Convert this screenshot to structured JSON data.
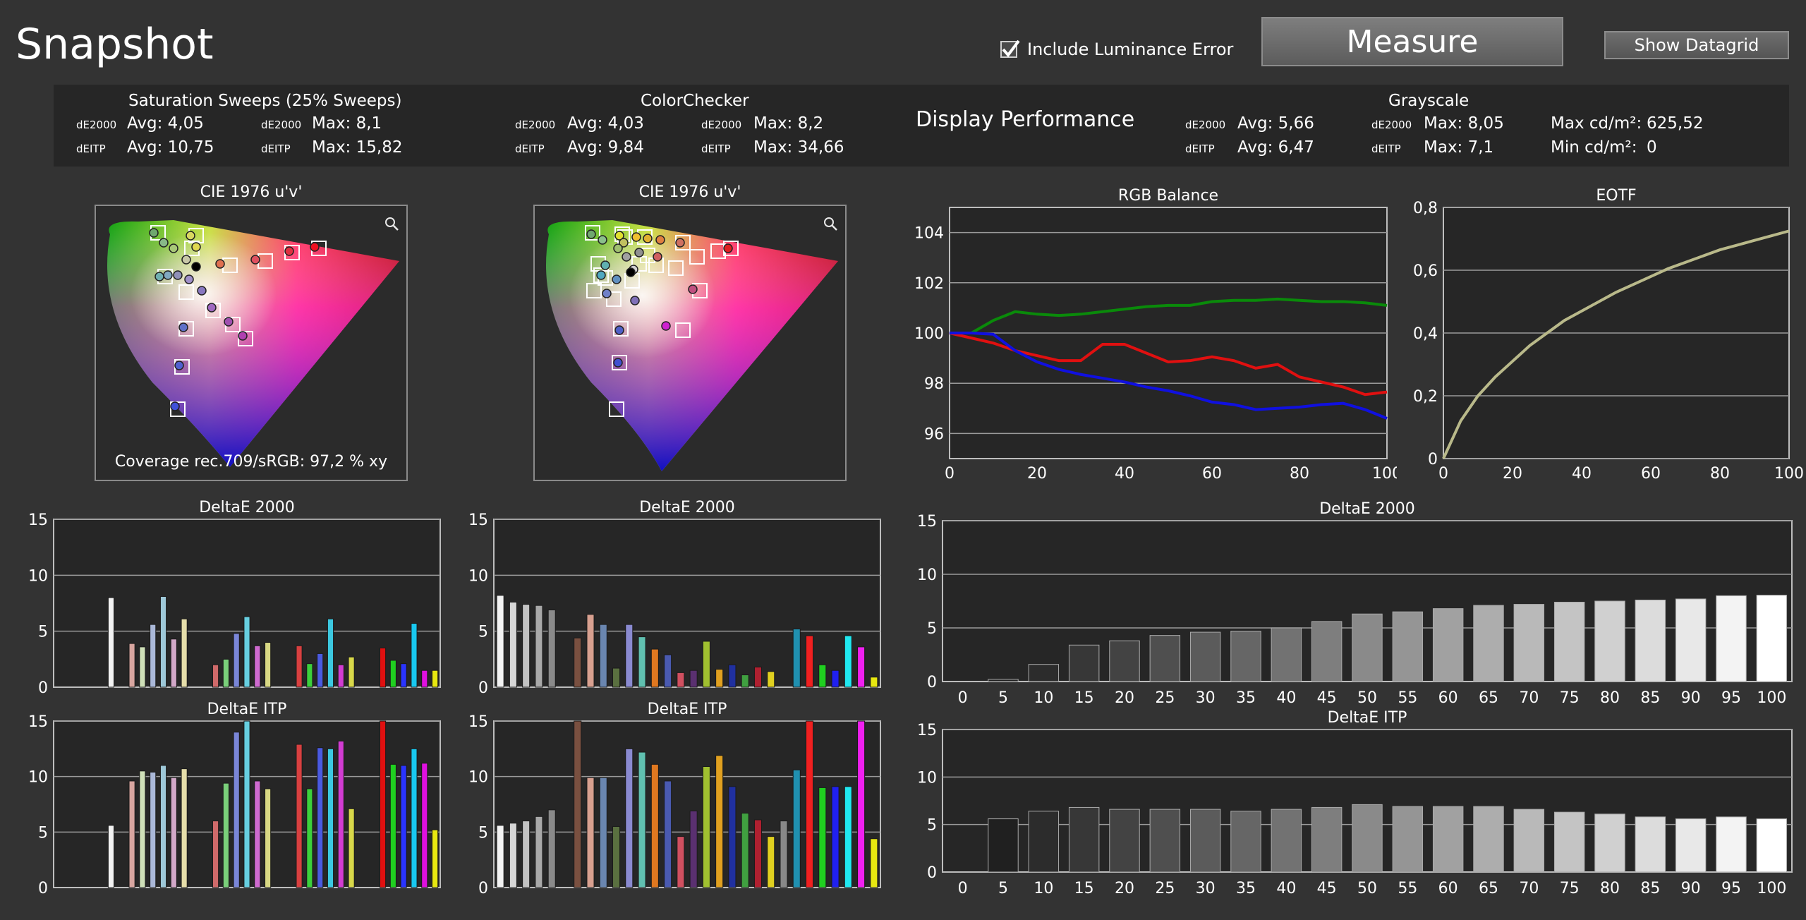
{
  "header": {
    "title": "Snapshot",
    "include_luminance_error": "Include Luminance Error",
    "include_luminance_checked": true,
    "measure_label": "Measure",
    "show_datagrid_label": "Show Datagrid"
  },
  "summary": {
    "saturation": {
      "title": "Saturation Sweeps (25% Sweeps)",
      "de2000_label": "dE2000",
      "deitp_label": "dEITP",
      "de2000_avg": "Avg: 4,05",
      "de2000_max": "Max: 8,1",
      "deitp_avg": "Avg: 10,75",
      "deitp_max": "Max: 15,82"
    },
    "colorchecker": {
      "title": "ColorChecker",
      "de2000_label": "dE2000",
      "deitp_label": "dEITP",
      "de2000_avg": "Avg: 4,03",
      "de2000_max": "Max: 8,2",
      "deitp_avg": "Avg: 9,84",
      "deitp_max": "Max: 34,66"
    },
    "display_performance": "Display Performance",
    "grayscale": {
      "title": "Grayscale",
      "de2000_label": "dE2000",
      "deitp_label": "dEITP",
      "de2000_avg": "Avg: 5,66",
      "de2000_max": "Max: 8,05",
      "deitp_avg": "Avg: 6,47",
      "deitp_max": "Max: 7,1",
      "max_cd_label": "Max cd/m²:",
      "max_cd_value": "625,52",
      "min_cd_label": "Min cd/m²:",
      "min_cd_value": "0"
    }
  },
  "cie": {
    "left_title": "CIE 1976 u'v'",
    "right_title": "CIE 1976 u'v'",
    "coverage_text": "Coverage rec.709/sRGB:  97,2 % xy",
    "magnifier_icon": "magnifier-icon"
  },
  "colors": {
    "background": "#333333",
    "panel": "#262626",
    "grid": "#9a9a9a",
    "axis": "#bdbdbd"
  },
  "chart_data": [
    {
      "id": "rgb_balance",
      "type": "line",
      "title": "RGB Balance",
      "xlabel": "",
      "ylabel": "",
      "xlim": [
        0,
        100
      ],
      "ylim": [
        95,
        105
      ],
      "xticks": [
        0,
        20,
        40,
        60,
        80,
        100
      ],
      "xtick_labels": [
        "0",
        "20",
        "40",
        "60",
        "80",
        "100"
      ],
      "yticks": [
        96,
        98,
        100,
        102,
        104
      ],
      "ytick_labels": [
        "96",
        "98",
        "100",
        "102",
        "104"
      ],
      "grid": true,
      "x": [
        0,
        5,
        10,
        15,
        20,
        25,
        30,
        35,
        40,
        45,
        50,
        55,
        60,
        65,
        70,
        75,
        80,
        85,
        90,
        95,
        100
      ],
      "series": [
        {
          "color": "#e01010",
          "values": [
            100,
            99.8,
            99.6,
            99.3,
            99.1,
            98.9,
            98.9,
            99.55,
            99.55,
            99.2,
            98.85,
            98.9,
            99.05,
            98.9,
            98.6,
            98.75,
            98.25,
            98.05,
            97.85,
            97.55,
            97.65
          ]
        },
        {
          "color": "#0a8a0a",
          "values": [
            100,
            100.0,
            100.5,
            100.85,
            100.75,
            100.7,
            100.75,
            100.85,
            100.95,
            101.05,
            101.1,
            101.1,
            101.25,
            101.3,
            101.3,
            101.35,
            101.3,
            101.25,
            101.25,
            101.2,
            101.1
          ]
        },
        {
          "color": "#1010e0",
          "values": [
            100,
            100.0,
            99.95,
            99.3,
            98.85,
            98.55,
            98.35,
            98.2,
            98.05,
            97.85,
            97.7,
            97.5,
            97.25,
            97.15,
            96.95,
            97.0,
            97.05,
            97.15,
            97.2,
            96.95,
            96.6
          ]
        }
      ]
    },
    {
      "id": "eotf",
      "type": "line",
      "title": "EOTF",
      "xlabel": "",
      "ylabel": "",
      "xlim": [
        0,
        100
      ],
      "ylim": [
        0,
        0.8
      ],
      "xticks": [
        0,
        20,
        40,
        60,
        80,
        100
      ],
      "xtick_labels": [
        "0",
        "20",
        "40",
        "60",
        "80",
        "100"
      ],
      "yticks": [
        0,
        0.2,
        0.4,
        0.6,
        0.8
      ],
      "ytick_labels": [
        "0",
        "0,2",
        "0,4",
        "0,6",
        "0,8"
      ],
      "grid": true,
      "x": [
        0,
        5,
        10,
        15,
        20,
        25,
        30,
        35,
        40,
        45,
        50,
        55,
        60,
        65,
        70,
        75,
        80,
        85,
        90,
        95,
        100
      ],
      "series": [
        {
          "color": "#b9b98a",
          "values": [
            0,
            0.12,
            0.2,
            0.26,
            0.31,
            0.36,
            0.4,
            0.44,
            0.47,
            0.5,
            0.53,
            0.555,
            0.58,
            0.605,
            0.625,
            0.645,
            0.665,
            0.68,
            0.695,
            0.71,
            0.725
          ]
        }
      ]
    },
    {
      "id": "sat_de2000",
      "type": "bar",
      "title": "DeltaE 2000",
      "ylim": [
        0,
        15
      ],
      "yticks": [
        0,
        5,
        10,
        15
      ],
      "ytick_labels": [
        "0",
        "5",
        "10",
        "15"
      ],
      "grid": true,
      "values": [
        0,
        0,
        0,
        0,
        0,
        8,
        0,
        3.9,
        3.6,
        5.6,
        8.1,
        4.3,
        6.1,
        0,
        0,
        2.0,
        2.5,
        4.8,
        6.3,
        3.7,
        4.0,
        0,
        0,
        3.7,
        2.1,
        3.0,
        6.1,
        2.0,
        2.7,
        0,
        0,
        3.5,
        2.4,
        2.1,
        5.7,
        1.5,
        1.5
      ],
      "colors": [
        "#888",
        "#888",
        "#888",
        "#888",
        "#888",
        "#f2f2f2",
        "#888",
        "#d8a6a0",
        "#cfe0b8",
        "#aab8d8",
        "#9ec8d8",
        "#d2a8c8",
        "#e6deaa",
        "#888",
        "#888",
        "#cf6a6a",
        "#7acf7a",
        "#7a86d8",
        "#67cfe0",
        "#cf6acf",
        "#d8d884",
        "#888",
        "#888",
        "#d84040",
        "#3cd03c",
        "#4a5ae0",
        "#3cc8e0",
        "#d23cd2",
        "#d8d84a",
        "#888",
        "#888",
        "#e01010",
        "#20d020",
        "#2a34ff",
        "#18c8f0",
        "#e010e0",
        "#e8e810"
      ]
    },
    {
      "id": "sat_deitp",
      "type": "bar",
      "title": "DeltaE ITP",
      "ylim": [
        0,
        15
      ],
      "yticks": [
        0,
        5,
        10,
        15
      ],
      "ytick_labels": [
        "0",
        "5",
        "10",
        "15"
      ],
      "grid": true,
      "values": [
        0,
        0,
        0,
        0,
        0,
        5.6,
        0,
        9.6,
        10.5,
        10.4,
        11.0,
        9.9,
        10.7,
        0,
        0,
        6.0,
        9.4,
        14.0,
        15.0,
        9.6,
        8.9,
        0,
        0,
        12.9,
        8.9,
        12.6,
        12.5,
        13.2,
        7.1,
        0,
        0,
        15.0,
        11.1,
        11.0,
        12.5,
        11.2,
        5.2
      ],
      "colors": [
        "#888",
        "#888",
        "#888",
        "#888",
        "#888",
        "#f2f2f2",
        "#888",
        "#d8a6a0",
        "#cfe0b8",
        "#aab8d8",
        "#9ec8d8",
        "#d2a8c8",
        "#e6deaa",
        "#888",
        "#888",
        "#cf6a6a",
        "#7acf7a",
        "#7a86d8",
        "#67cfe0",
        "#cf6acf",
        "#d8d884",
        "#888",
        "#888",
        "#d84040",
        "#3cd03c",
        "#4a5ae0",
        "#3cc8e0",
        "#d23cd2",
        "#d8d84a",
        "#888",
        "#888",
        "#e01010",
        "#20d020",
        "#2a34ff",
        "#18c8f0",
        "#e010e0",
        "#e8e810"
      ]
    },
    {
      "id": "cc_de2000",
      "type": "bar",
      "title": "DeltaE 2000",
      "ylim": [
        0,
        15
      ],
      "yticks": [
        0,
        5,
        10,
        15
      ],
      "ytick_labels": [
        "0",
        "5",
        "10",
        "15"
      ],
      "grid": true,
      "values": [
        8.2,
        7.6,
        7.4,
        7.3,
        6.9,
        0,
        4.4,
        6.5,
        5.6,
        1.7,
        5.6,
        4.5,
        3.4,
        2.9,
        1.3,
        1.5,
        4.1,
        1.6,
        2.0,
        1.1,
        1.8,
        1.4,
        0,
        5.2,
        4.6,
        2.0,
        1.5,
        4.6,
        3.6,
        0.9
      ],
      "colors": [
        "#f2f2f2",
        "#d6d6d6",
        "#c2c2c2",
        "#a8a8a8",
        "#8a8a8a",
        "#888",
        "#7a5040",
        "#d8a090",
        "#6a86b0",
        "#5a7040",
        "#8a8ad0",
        "#60c0b0",
        "#e07820",
        "#4a5ab0",
        "#d05060",
        "#5a3070",
        "#a0c030",
        "#e0a020",
        "#2030a0",
        "#40a040",
        "#b02030",
        "#e0d020",
        "#888",
        "#2090b0",
        "#f02020",
        "#20d020",
        "#2020f0",
        "#20e8f0",
        "#f020f0",
        "#e8e810"
      ]
    },
    {
      "id": "cc_deitp",
      "type": "bar",
      "title": "DeltaE ITP",
      "ylim": [
        0,
        15
      ],
      "yticks": [
        0,
        5,
        10,
        15
      ],
      "ytick_labels": [
        "0",
        "5",
        "10",
        "15"
      ],
      "grid": true,
      "values": [
        5.6,
        5.8,
        6.0,
        6.4,
        7.0,
        0,
        15.0,
        9.9,
        9.9,
        5.5,
        12.5,
        12.2,
        11.1,
        9.6,
        4.6,
        6.9,
        10.9,
        11.9,
        9.1,
        6.7,
        6.1,
        4.6,
        6.0,
        10.6,
        15.0,
        9.0,
        9.1,
        9.1,
        15.0,
        4.4
      ],
      "colors": [
        "#f2f2f2",
        "#d6d6d6",
        "#c2c2c2",
        "#a8a8a8",
        "#8a8a8a",
        "#888",
        "#7a5040",
        "#d8a090",
        "#6a86b0",
        "#5a7040",
        "#8a8ad0",
        "#60c0b0",
        "#e07820",
        "#4a5ab0",
        "#d05060",
        "#5a3070",
        "#a0c030",
        "#e0a020",
        "#2030a0",
        "#40a040",
        "#b02030",
        "#e0d020",
        "#888",
        "#2090b0",
        "#f02020",
        "#20d020",
        "#2020f0",
        "#20e8f0",
        "#f020f0",
        "#e8e810"
      ]
    },
    {
      "id": "gs_de2000",
      "type": "bar",
      "title": "DeltaE 2000",
      "ylim": [
        0,
        15
      ],
      "yticks": [
        0,
        5,
        10,
        15
      ],
      "ytick_labels": [
        "0",
        "5",
        "10",
        "15"
      ],
      "grid": true,
      "categories": [
        "0",
        "5",
        "10",
        "15",
        "20",
        "25",
        "30",
        "35",
        "40",
        "45",
        "50",
        "55",
        "60",
        "65",
        "70",
        "75",
        "80",
        "85",
        "90",
        "95",
        "100"
      ],
      "values": [
        0,
        0.2,
        1.6,
        3.4,
        3.8,
        4.3,
        4.6,
        4.7,
        5.0,
        5.6,
        6.3,
        6.5,
        6.8,
        7.1,
        7.2,
        7.4,
        7.5,
        7.6,
        7.7,
        8.0,
        8.05
      ]
    },
    {
      "id": "gs_deitp",
      "type": "bar",
      "title": "DeltaE ITP",
      "ylim": [
        0,
        15
      ],
      "yticks": [
        0,
        5,
        10,
        15
      ],
      "ytick_labels": [
        "0",
        "5",
        "10",
        "15"
      ],
      "grid": true,
      "categories": [
        "0",
        "5",
        "10",
        "15",
        "20",
        "25",
        "30",
        "35",
        "40",
        "45",
        "50",
        "55",
        "60",
        "65",
        "70",
        "75",
        "80",
        "85",
        "90",
        "95",
        "100"
      ],
      "values": [
        0,
        5.6,
        6.4,
        6.8,
        6.6,
        6.6,
        6.6,
        6.4,
        6.6,
        6.8,
        7.1,
        6.9,
        6.9,
        6.9,
        6.6,
        6.3,
        6.1,
        5.8,
        5.6,
        5.8,
        5.6
      ]
    }
  ]
}
